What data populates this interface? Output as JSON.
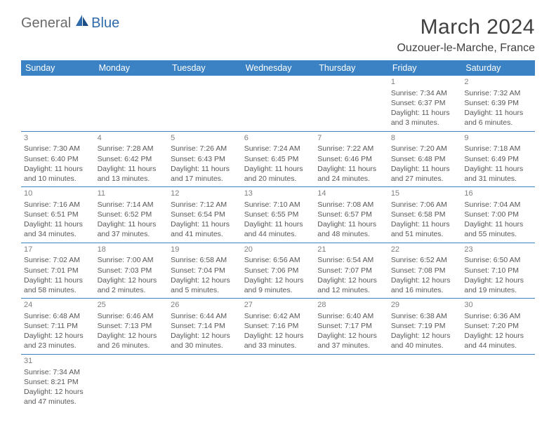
{
  "logo": {
    "general": "General",
    "blue": "Blue"
  },
  "title": "March 2024",
  "location": "Ouzouer-le-Marche, France",
  "colors": {
    "header_bg": "#3b82c4",
    "header_text": "#ffffff",
    "border": "#3b82c4",
    "body_text": "#585858",
    "daynum": "#808080",
    "logo_gray": "#6b6b6b",
    "logo_blue": "#2f6aab"
  },
  "weekdays": [
    "Sunday",
    "Monday",
    "Tuesday",
    "Wednesday",
    "Thursday",
    "Friday",
    "Saturday"
  ],
  "weeks": [
    [
      null,
      null,
      null,
      null,
      null,
      {
        "n": "1",
        "sunrise": "7:34 AM",
        "sunset": "6:37 PM",
        "daylight": "11 hours and 3 minutes."
      },
      {
        "n": "2",
        "sunrise": "7:32 AM",
        "sunset": "6:39 PM",
        "daylight": "11 hours and 6 minutes."
      }
    ],
    [
      {
        "n": "3",
        "sunrise": "7:30 AM",
        "sunset": "6:40 PM",
        "daylight": "11 hours and 10 minutes."
      },
      {
        "n": "4",
        "sunrise": "7:28 AM",
        "sunset": "6:42 PM",
        "daylight": "11 hours and 13 minutes."
      },
      {
        "n": "5",
        "sunrise": "7:26 AM",
        "sunset": "6:43 PM",
        "daylight": "11 hours and 17 minutes."
      },
      {
        "n": "6",
        "sunrise": "7:24 AM",
        "sunset": "6:45 PM",
        "daylight": "11 hours and 20 minutes."
      },
      {
        "n": "7",
        "sunrise": "7:22 AM",
        "sunset": "6:46 PM",
        "daylight": "11 hours and 24 minutes."
      },
      {
        "n": "8",
        "sunrise": "7:20 AM",
        "sunset": "6:48 PM",
        "daylight": "11 hours and 27 minutes."
      },
      {
        "n": "9",
        "sunrise": "7:18 AM",
        "sunset": "6:49 PM",
        "daylight": "11 hours and 31 minutes."
      }
    ],
    [
      {
        "n": "10",
        "sunrise": "7:16 AM",
        "sunset": "6:51 PM",
        "daylight": "11 hours and 34 minutes."
      },
      {
        "n": "11",
        "sunrise": "7:14 AM",
        "sunset": "6:52 PM",
        "daylight": "11 hours and 37 minutes."
      },
      {
        "n": "12",
        "sunrise": "7:12 AM",
        "sunset": "6:54 PM",
        "daylight": "11 hours and 41 minutes."
      },
      {
        "n": "13",
        "sunrise": "7:10 AM",
        "sunset": "6:55 PM",
        "daylight": "11 hours and 44 minutes."
      },
      {
        "n": "14",
        "sunrise": "7:08 AM",
        "sunset": "6:57 PM",
        "daylight": "11 hours and 48 minutes."
      },
      {
        "n": "15",
        "sunrise": "7:06 AM",
        "sunset": "6:58 PM",
        "daylight": "11 hours and 51 minutes."
      },
      {
        "n": "16",
        "sunrise": "7:04 AM",
        "sunset": "7:00 PM",
        "daylight": "11 hours and 55 minutes."
      }
    ],
    [
      {
        "n": "17",
        "sunrise": "7:02 AM",
        "sunset": "7:01 PM",
        "daylight": "11 hours and 58 minutes."
      },
      {
        "n": "18",
        "sunrise": "7:00 AM",
        "sunset": "7:03 PM",
        "daylight": "12 hours and 2 minutes."
      },
      {
        "n": "19",
        "sunrise": "6:58 AM",
        "sunset": "7:04 PM",
        "daylight": "12 hours and 5 minutes."
      },
      {
        "n": "20",
        "sunrise": "6:56 AM",
        "sunset": "7:06 PM",
        "daylight": "12 hours and 9 minutes."
      },
      {
        "n": "21",
        "sunrise": "6:54 AM",
        "sunset": "7:07 PM",
        "daylight": "12 hours and 12 minutes."
      },
      {
        "n": "22",
        "sunrise": "6:52 AM",
        "sunset": "7:08 PM",
        "daylight": "12 hours and 16 minutes."
      },
      {
        "n": "23",
        "sunrise": "6:50 AM",
        "sunset": "7:10 PM",
        "daylight": "12 hours and 19 minutes."
      }
    ],
    [
      {
        "n": "24",
        "sunrise": "6:48 AM",
        "sunset": "7:11 PM",
        "daylight": "12 hours and 23 minutes."
      },
      {
        "n": "25",
        "sunrise": "6:46 AM",
        "sunset": "7:13 PM",
        "daylight": "12 hours and 26 minutes."
      },
      {
        "n": "26",
        "sunrise": "6:44 AM",
        "sunset": "7:14 PM",
        "daylight": "12 hours and 30 minutes."
      },
      {
        "n": "27",
        "sunrise": "6:42 AM",
        "sunset": "7:16 PM",
        "daylight": "12 hours and 33 minutes."
      },
      {
        "n": "28",
        "sunrise": "6:40 AM",
        "sunset": "7:17 PM",
        "daylight": "12 hours and 37 minutes."
      },
      {
        "n": "29",
        "sunrise": "6:38 AM",
        "sunset": "7:19 PM",
        "daylight": "12 hours and 40 minutes."
      },
      {
        "n": "30",
        "sunrise": "6:36 AM",
        "sunset": "7:20 PM",
        "daylight": "12 hours and 44 minutes."
      }
    ],
    [
      {
        "n": "31",
        "sunrise": "7:34 AM",
        "sunset": "8:21 PM",
        "daylight": "12 hours and 47 minutes."
      },
      null,
      null,
      null,
      null,
      null,
      null
    ]
  ],
  "labels": {
    "sunrise": "Sunrise: ",
    "sunset": "Sunset: ",
    "daylight": "Daylight: "
  }
}
